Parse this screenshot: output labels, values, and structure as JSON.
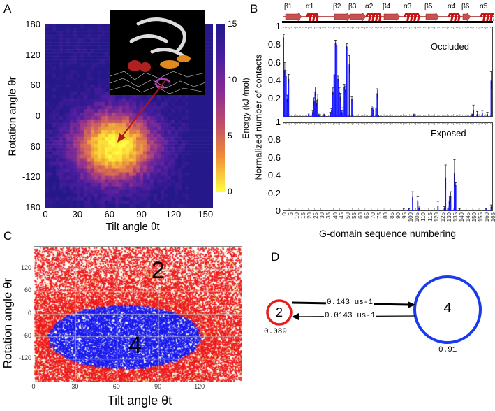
{
  "panels": {
    "a": {
      "letter": "A"
    },
    "b": {
      "letter": "B"
    },
    "c": {
      "letter": "C"
    },
    "d": {
      "letter": "D"
    }
  },
  "colors": {
    "heat_low": "#ffff40",
    "heat_high": "#24188a",
    "state2": "#ee1111",
    "state4": "#1a1aee",
    "bars": "#1a1aff",
    "helix": "#cc1111"
  },
  "chart_data": [
    {
      "id": "A",
      "type": "heatmap",
      "xlabel": "Tilt angle θt",
      "ylabel": "Rotation angle θr",
      "xlim": [
        0,
        157
      ],
      "ylim": [
        -180,
        180
      ],
      "xticks": [
        "0",
        "30",
        "60",
        "90",
        "120",
        "150"
      ],
      "yticks": [
        "180",
        "120",
        "60",
        "0",
        "-60",
        "-120",
        "-180"
      ],
      "colorbar": {
        "label": "Energy (kJ /mol)",
        "range": [
          0,
          15
        ],
        "ticks": [
          "15",
          "10",
          "5",
          "0"
        ]
      },
      "minimum": {
        "tilt": 65,
        "rotation": -60,
        "energy": 0
      },
      "annotation": "arrow from inset structure to energy minimum"
    },
    {
      "id": "B",
      "type": "bar",
      "xlabel": "G-domain sequence numbering",
      "ylabel": "Normalized number of contacts",
      "xlim": [
        0,
        166
      ],
      "ylim": [
        0,
        1
      ],
      "xticks": [
        "0",
        "5",
        "10",
        "15",
        "20",
        "25",
        "30",
        "35",
        "40",
        "45",
        "50",
        "55",
        "60",
        "65",
        "70",
        "75",
        "80",
        "85",
        "90",
        "95",
        "100",
        "105",
        "110",
        "115",
        "120",
        "125",
        "130",
        "135",
        "140",
        "145",
        "150",
        "155",
        "160",
        "165"
      ],
      "yticks": [
        "1",
        "0.8",
        "0.6",
        "0.4",
        "0.2",
        "0"
      ],
      "secondary_structure": [
        "β1",
        "α1",
        "β2",
        "β3",
        "α2",
        "β4",
        "α3",
        "β5",
        "α4",
        "β6",
        "α5"
      ],
      "series": [
        {
          "name": "Occluded",
          "bars": [
            [
              0,
              0.88,
              0.03
            ],
            [
              1,
              0.52,
              0.08
            ],
            [
              2,
              0.45,
              0.06
            ],
            [
              3,
              0.2,
              0.04
            ],
            [
              4,
              0.42,
              0.05
            ],
            [
              20,
              0.03,
              0.01
            ],
            [
              23,
              0.05,
              0.02
            ],
            [
              24,
              0.17,
              0.04
            ],
            [
              25,
              0.28,
              0.05
            ],
            [
              26,
              0.15,
              0.03
            ],
            [
              27,
              0.2,
              0.05
            ],
            [
              28,
              0.02,
              0.01
            ],
            [
              32,
              0.02,
              0.01
            ],
            [
              37,
              0.04,
              0.01
            ],
            [
              38,
              0.07,
              0.02
            ],
            [
              39,
              0.28,
              0.04
            ],
            [
              40,
              0.47,
              0.06
            ],
            [
              41,
              0.82,
              0.03
            ],
            [
              42,
              0.8,
              0.04
            ],
            [
              43,
              0.42,
              0.03
            ],
            [
              44,
              0.28,
              0.04
            ],
            [
              45,
              0.22,
              0.04
            ],
            [
              46,
              0.05,
              0.02
            ],
            [
              47,
              0.08,
              0.02
            ],
            [
              48,
              0.33,
              0.03
            ],
            [
              49,
              0.3,
              0.04
            ],
            [
              50,
              0.78,
              0.03
            ],
            [
              52,
              0.58,
              0.1
            ],
            [
              54,
              0.2,
              0.02
            ],
            [
              70,
              0.1,
              0.02
            ],
            [
              71,
              0.08,
              0.02
            ],
            [
              73,
              0.1,
              0.02
            ],
            [
              74,
              0.26,
              0.05
            ],
            [
              75,
              0.01,
              0.01
            ],
            [
              103,
              0.02,
              0.01
            ],
            [
              149,
              0.02,
              0.01
            ],
            [
              150,
              0.07,
              0.06
            ],
            [
              153,
              0.03,
              0.03
            ],
            [
              157,
              0.04,
              0.03
            ],
            [
              161,
              0.03,
              0.02
            ],
            [
              164,
              0.4,
              0.1
            ]
          ]
        },
        {
          "name": "Exposed",
          "bars": [
            [
              95,
              0.02,
              0.01
            ],
            [
              99,
              0.02,
              0.01
            ],
            [
              102,
              0.16,
              0.06
            ],
            [
              106,
              0.12,
              0.04
            ],
            [
              107,
              0.04,
              0.02
            ],
            [
              122,
              0.06,
              0.05
            ],
            [
              127,
              0.03,
              0.02
            ],
            [
              128,
              0.38,
              0.14
            ],
            [
              130,
              0.04,
              0.02
            ],
            [
              131,
              0.12,
              0.05
            ],
            [
              132,
              0.17,
              0.05
            ],
            [
              135,
              0.43,
              0.15
            ],
            [
              136,
              0.3,
              0.02
            ],
            [
              139,
              0.02,
              0.01
            ],
            [
              160,
              0.02,
              0.01
            ],
            [
              164,
              0.05,
              0.02
            ]
          ]
        }
      ]
    },
    {
      "id": "C",
      "type": "scatter",
      "xlabel": "Tilt angle θt",
      "ylabel": "Rotation angle θr",
      "xlim": [
        0,
        150
      ],
      "ylim": [
        -180,
        180
      ],
      "xticks": [
        "0",
        "30",
        "60",
        "90",
        "120"
      ],
      "yticks": [
        "120",
        "60",
        "0",
        "-60",
        "-120"
      ],
      "grid": true,
      "states": [
        {
          "label": "2",
          "color": "red",
          "region": "outer"
        },
        {
          "label": "4",
          "color": "blue",
          "center": [
            65,
            -60
          ],
          "half_widths": [
            55,
            85
          ]
        }
      ]
    },
    {
      "id": "D",
      "type": "diagram",
      "nodes": [
        {
          "label": "2",
          "population": "0.089",
          "color": "red"
        },
        {
          "label": "4",
          "population": "0.91",
          "color": "blue"
        }
      ],
      "edges": [
        {
          "from": "2",
          "to": "4",
          "rate": "0.143 us-1"
        },
        {
          "from": "4",
          "to": "2",
          "rate": "0.0143 us-1"
        }
      ]
    }
  ]
}
